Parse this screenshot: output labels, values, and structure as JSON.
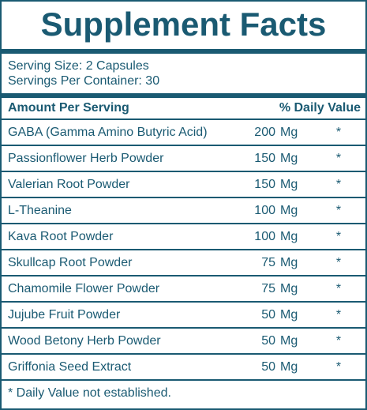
{
  "title": "Supplement Facts",
  "serving_size": "Serving Size: 2 Capsules",
  "servings_per_container": "Servings Per Container: 30",
  "header": {
    "amount_label": "Amount Per Serving",
    "dv_label": "% Daily Value"
  },
  "ingredients": [
    {
      "name": "GABA (Gamma Amino Butyric Acid)",
      "amount": "200",
      "unit": "Mg",
      "dv": "*"
    },
    {
      "name": "Passionflower Herb Powder",
      "amount": "150",
      "unit": "Mg",
      "dv": "*"
    },
    {
      "name": "Valerian Root Powder",
      "amount": "150",
      "unit": "Mg",
      "dv": "*"
    },
    {
      "name": "L-Theanine",
      "amount": "100",
      "unit": "Mg",
      "dv": "*"
    },
    {
      "name": "Kava Root Powder",
      "amount": "100",
      "unit": "Mg",
      "dv": "*"
    },
    {
      "name": "Skullcap Root Powder",
      "amount": "75",
      "unit": "Mg",
      "dv": "*"
    },
    {
      "name": "Chamomile Flower Powder",
      "amount": "75",
      "unit": "Mg",
      "dv": "*"
    },
    {
      "name": "Jujube Fruit Powder",
      "amount": "50",
      "unit": "Mg",
      "dv": "*"
    },
    {
      "name": "Wood Betony Herb Powder",
      "amount": "50",
      "unit": "Mg",
      "dv": "*"
    },
    {
      "name": "Griffonia Seed Extract",
      "amount": "50",
      "unit": "Mg",
      "dv": "*"
    }
  ],
  "footnote": "* Daily Value not established.",
  "colors": {
    "text": "#1a5a72",
    "background": "#ffffff"
  }
}
